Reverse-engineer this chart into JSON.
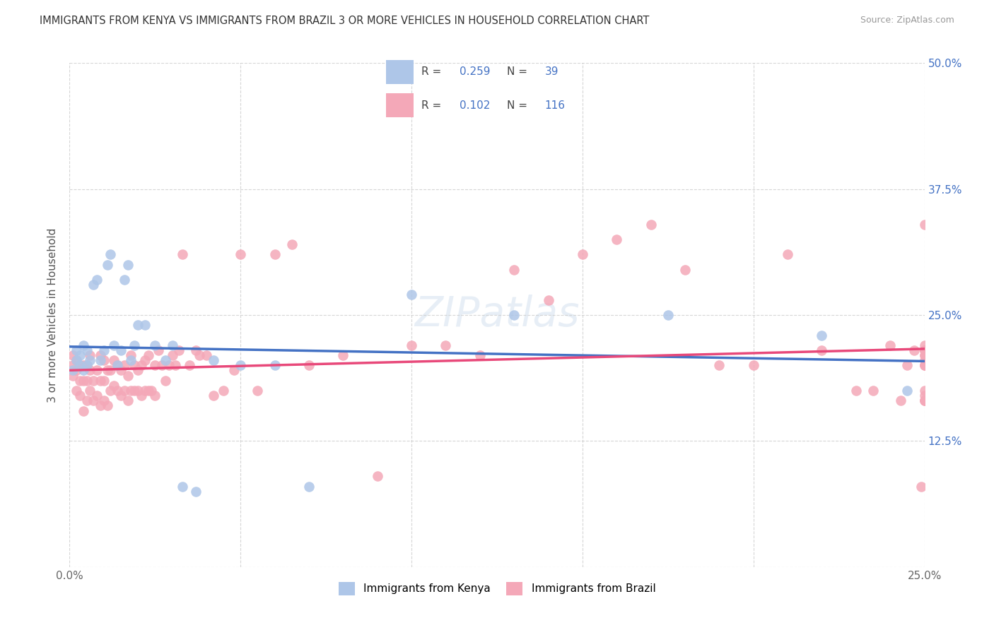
{
  "title": "IMMIGRANTS FROM KENYA VS IMMIGRANTS FROM BRAZIL 3 OR MORE VEHICLES IN HOUSEHOLD CORRELATION CHART",
  "source": "Source: ZipAtlas.com",
  "ylabel": "3 or more Vehicles in Household",
  "xlim": [
    0.0,
    0.25
  ],
  "ylim": [
    0.0,
    0.5
  ],
  "ytick_labels_right": [
    "50.0%",
    "37.5%",
    "25.0%",
    "12.5%"
  ],
  "ytick_positions_right": [
    0.5,
    0.375,
    0.25,
    0.125
  ],
  "kenya_R": 0.259,
  "kenya_N": 39,
  "brazil_R": 0.102,
  "brazil_N": 116,
  "kenya_color": "#aec6e8",
  "brazil_color": "#f4a8b8",
  "kenya_line_color": "#4472c4",
  "brazil_line_color": "#e8497a",
  "watermark": "ZIPatlas",
  "kenya_scatter_x": [
    0.001,
    0.002,
    0.002,
    0.003,
    0.003,
    0.004,
    0.004,
    0.005,
    0.005,
    0.006,
    0.007,
    0.008,
    0.009,
    0.01,
    0.011,
    0.012,
    0.013,
    0.014,
    0.015,
    0.016,
    0.017,
    0.018,
    0.019,
    0.02,
    0.022,
    0.025,
    0.028,
    0.03,
    0.033,
    0.037,
    0.042,
    0.05,
    0.06,
    0.07,
    0.1,
    0.13,
    0.175,
    0.22,
    0.245
  ],
  "kenya_scatter_y": [
    0.195,
    0.205,
    0.215,
    0.2,
    0.21,
    0.195,
    0.22,
    0.2,
    0.215,
    0.205,
    0.28,
    0.285,
    0.205,
    0.215,
    0.3,
    0.31,
    0.22,
    0.2,
    0.215,
    0.285,
    0.3,
    0.205,
    0.22,
    0.24,
    0.24,
    0.22,
    0.205,
    0.22,
    0.08,
    0.075,
    0.205,
    0.2,
    0.2,
    0.08,
    0.27,
    0.25,
    0.25,
    0.23,
    0.175
  ],
  "brazil_scatter_x": [
    0.001,
    0.001,
    0.001,
    0.002,
    0.002,
    0.002,
    0.003,
    0.003,
    0.003,
    0.004,
    0.004,
    0.004,
    0.005,
    0.005,
    0.005,
    0.006,
    0.006,
    0.006,
    0.007,
    0.007,
    0.008,
    0.008,
    0.009,
    0.009,
    0.009,
    0.01,
    0.01,
    0.01,
    0.011,
    0.011,
    0.012,
    0.012,
    0.013,
    0.013,
    0.014,
    0.014,
    0.015,
    0.015,
    0.016,
    0.016,
    0.017,
    0.017,
    0.018,
    0.018,
    0.019,
    0.019,
    0.02,
    0.02,
    0.021,
    0.021,
    0.022,
    0.022,
    0.023,
    0.023,
    0.024,
    0.025,
    0.025,
    0.026,
    0.027,
    0.028,
    0.029,
    0.03,
    0.031,
    0.032,
    0.033,
    0.035,
    0.037,
    0.038,
    0.04,
    0.042,
    0.045,
    0.048,
    0.05,
    0.055,
    0.06,
    0.065,
    0.07,
    0.08,
    0.09,
    0.1,
    0.11,
    0.12,
    0.13,
    0.14,
    0.15,
    0.16,
    0.17,
    0.18,
    0.19,
    0.2,
    0.21,
    0.22,
    0.23,
    0.235,
    0.24,
    0.243,
    0.245,
    0.247,
    0.249,
    0.25,
    0.25,
    0.25,
    0.25,
    0.25,
    0.25,
    0.25,
    0.25,
    0.25,
    0.25,
    0.25,
    0.25,
    0.25,
    0.25,
    0.25,
    0.25,
    0.25
  ],
  "brazil_scatter_y": [
    0.19,
    0.2,
    0.21,
    0.175,
    0.195,
    0.205,
    0.17,
    0.185,
    0.2,
    0.155,
    0.185,
    0.2,
    0.165,
    0.185,
    0.2,
    0.175,
    0.195,
    0.21,
    0.165,
    0.185,
    0.17,
    0.195,
    0.16,
    0.185,
    0.21,
    0.165,
    0.185,
    0.205,
    0.16,
    0.195,
    0.175,
    0.195,
    0.18,
    0.205,
    0.175,
    0.2,
    0.17,
    0.195,
    0.175,
    0.2,
    0.165,
    0.19,
    0.175,
    0.21,
    0.175,
    0.2,
    0.175,
    0.195,
    0.17,
    0.2,
    0.175,
    0.205,
    0.175,
    0.21,
    0.175,
    0.17,
    0.2,
    0.215,
    0.2,
    0.185,
    0.2,
    0.21,
    0.2,
    0.215,
    0.31,
    0.2,
    0.215,
    0.21,
    0.21,
    0.17,
    0.175,
    0.195,
    0.31,
    0.175,
    0.31,
    0.32,
    0.2,
    0.21,
    0.09,
    0.22,
    0.22,
    0.21,
    0.295,
    0.265,
    0.31,
    0.325,
    0.34,
    0.295,
    0.2,
    0.2,
    0.31,
    0.215,
    0.175,
    0.175,
    0.22,
    0.165,
    0.2,
    0.215,
    0.08,
    0.2,
    0.165,
    0.215,
    0.34,
    0.215,
    0.205,
    0.22,
    0.17,
    0.21,
    0.215,
    0.175,
    0.2,
    0.165,
    0.215,
    0.2,
    0.21,
    0.165
  ]
}
